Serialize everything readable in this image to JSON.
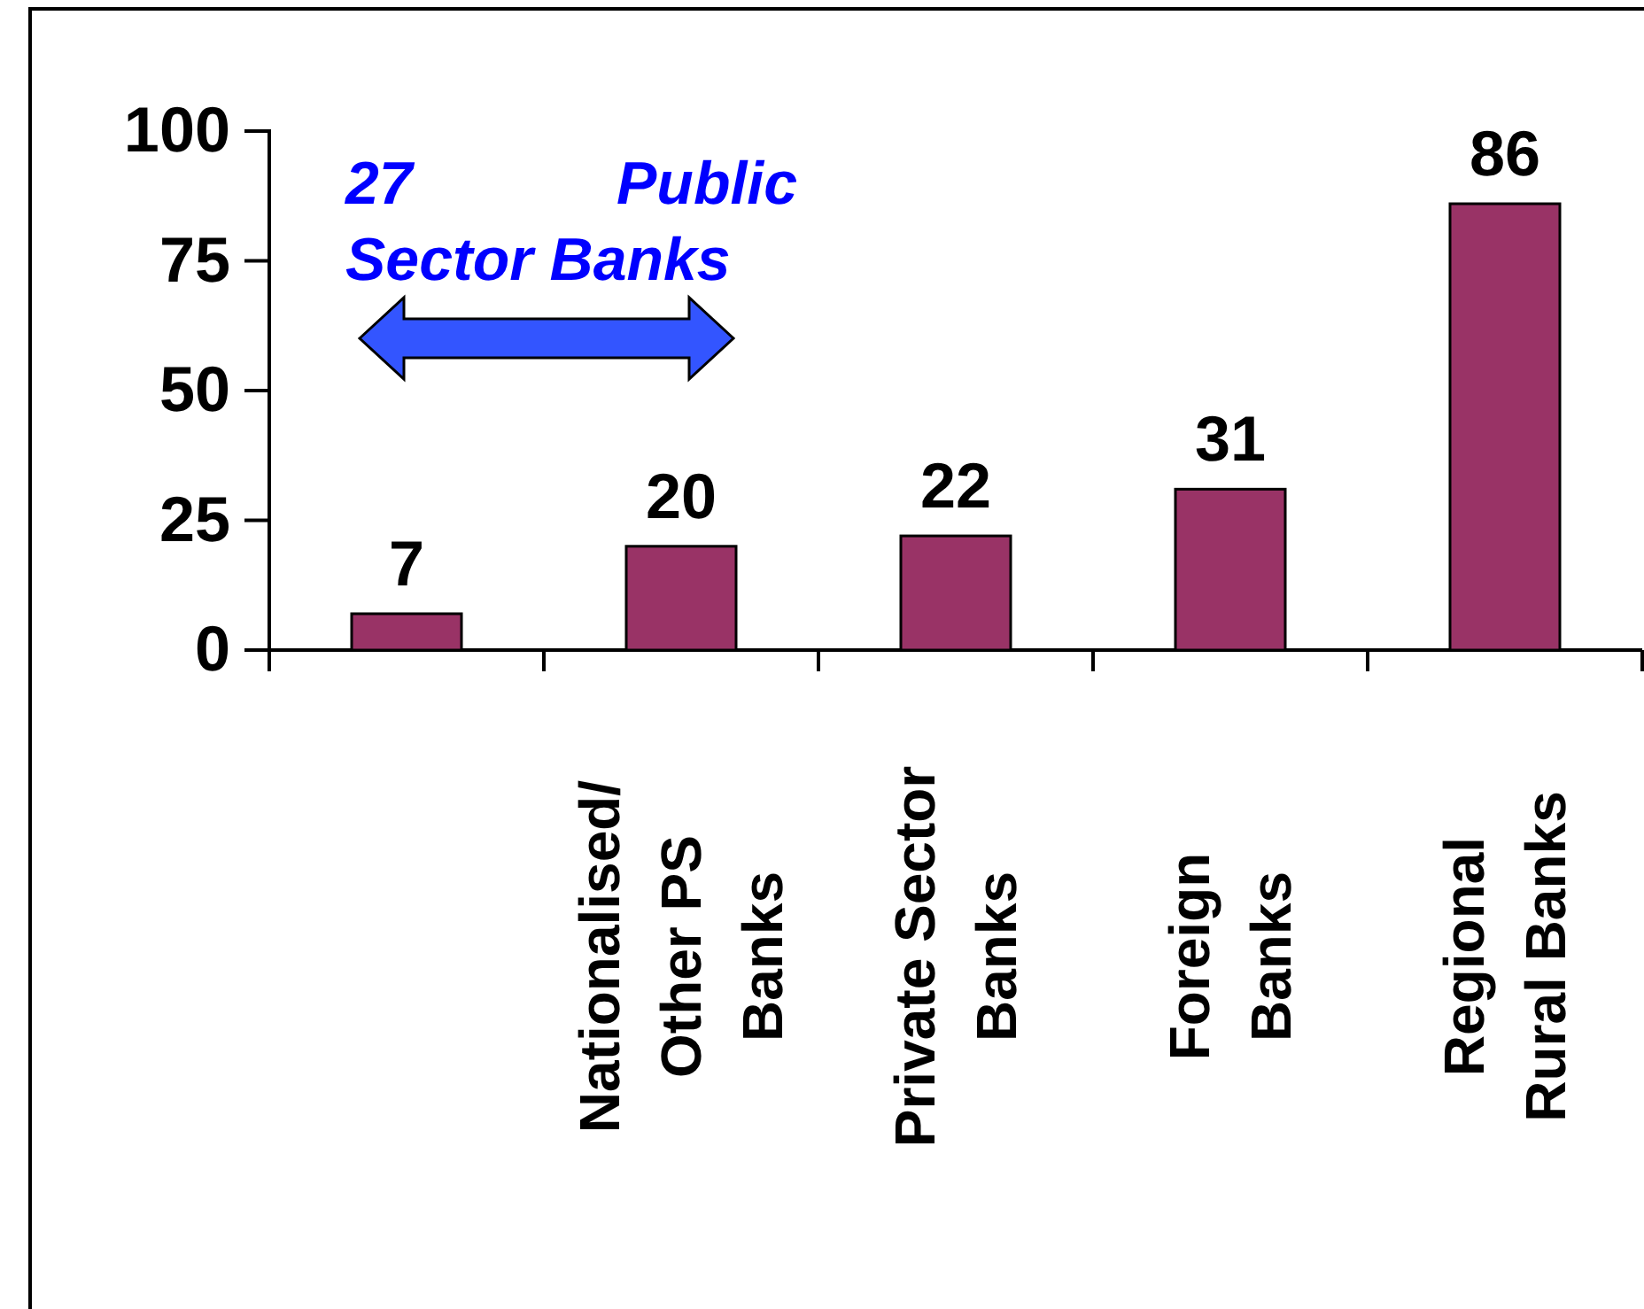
{
  "chart_data": {
    "type": "bar",
    "categories": [
      null,
      "Nationalised/\nOther PS\nBanks",
      "Private Sector\nBanks",
      "Foreign\nBanks",
      "Regional\nRural Banks"
    ],
    "values": [
      7,
      20,
      22,
      31,
      86
    ],
    "color": "#993366",
    "data_labels": true,
    "ylim": [
      0,
      100
    ],
    "yticks": [
      0,
      25,
      50,
      75,
      100
    ],
    "grid": false,
    "annotations": [
      "27 Public Sector Banks"
    ]
  }
}
